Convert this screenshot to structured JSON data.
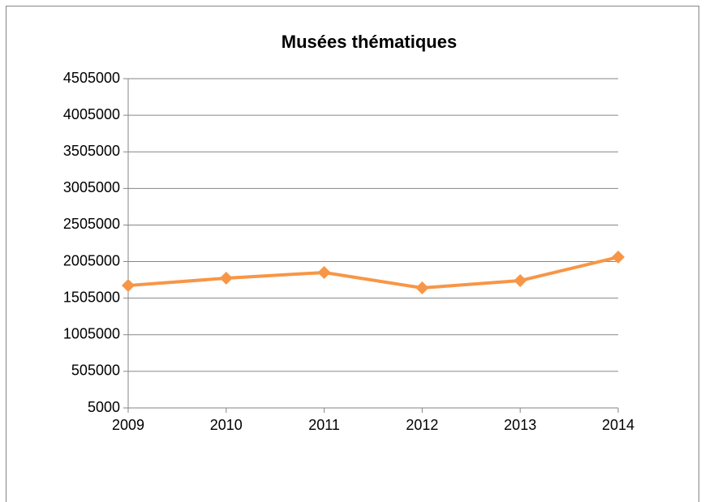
{
  "chart_data": {
    "type": "line",
    "title": "Musées thématiques",
    "categories": [
      "2009",
      "2010",
      "2011",
      "2012",
      "2013",
      "2014"
    ],
    "series": [
      {
        "name": "Musées thématiques",
        "color": "#f79646",
        "values": [
          1678000,
          1778000,
          1856000,
          1645000,
          1745000,
          2066000
        ]
      }
    ],
    "ylim": [
      5000,
      4505000
    ],
    "yticks": [
      5000,
      505000,
      1005000,
      1505000,
      2005000,
      2505000,
      3005000,
      3505000,
      4005000,
      4505000
    ],
    "grid": true
  }
}
